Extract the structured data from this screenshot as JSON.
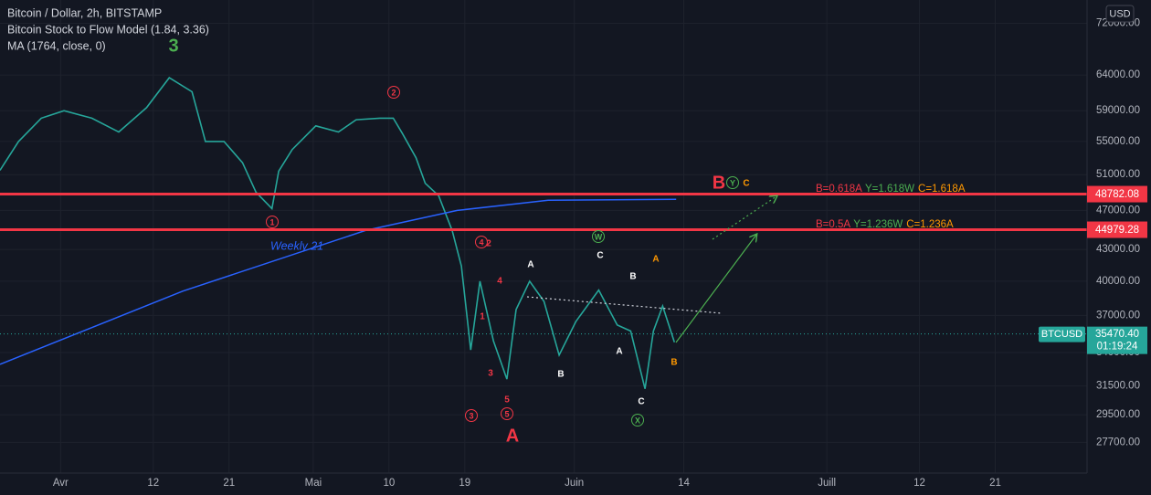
{
  "header": {
    "lines": [
      "Bitcoin / Dollar, 2h, BITSTAMP",
      "Bitcoin Stock to Flow Model (1.84, 3.36)",
      "MA (1764, close, 0)"
    ],
    "currency": "USD"
  },
  "chart_data": {
    "type": "line",
    "scale": "log",
    "grid": true,
    "xlim": [
      -7.2,
      121.9
    ],
    "ylim": [
      25830,
      75930
    ],
    "xticks": [
      {
        "value": 0,
        "label": "Avr"
      },
      {
        "value": 11,
        "label": "12"
      },
      {
        "value": 20,
        "label": "21"
      },
      {
        "value": 30,
        "label": "Mai"
      },
      {
        "value": 39,
        "label": "10"
      },
      {
        "value": 48,
        "label": "19"
      },
      {
        "value": 61,
        "label": "Juin"
      },
      {
        "value": 74,
        "label": "14"
      },
      {
        "value": 91,
        "label": "Juill"
      },
      {
        "value": 102,
        "label": "12"
      },
      {
        "value": 111,
        "label": "21"
      }
    ],
    "yticks": [
      {
        "value": 72000,
        "label": "72000.00"
      },
      {
        "value": 64000,
        "label": "64000.00"
      },
      {
        "value": 59000,
        "label": "59000.00"
      },
      {
        "value": 55000,
        "label": "55000.00"
      },
      {
        "value": 51000,
        "label": "51000.00"
      },
      {
        "value": 47000,
        "label": "47000.00"
      },
      {
        "value": 43000,
        "label": "43000.00"
      },
      {
        "value": 40000,
        "label": "40000.00"
      },
      {
        "value": 37000,
        "label": "37000.00"
      },
      {
        "value": 34000,
        "label": "34000.00"
      },
      {
        "value": 31500,
        "label": "31500.00"
      },
      {
        "value": 29500,
        "label": "29500.00"
      },
      {
        "value": 27700,
        "label": "27700.00"
      }
    ],
    "series": [
      {
        "name": "BTCUSD",
        "color": "#26a69a",
        "x": [
          -7.2,
          -5,
          -2.3,
          0.4,
          3.7,
          6.9,
          10.2,
          12.9,
          15.6,
          17.2,
          19.4,
          21.6,
          23.2,
          25.1,
          25.9,
          27.5,
          30.3,
          33,
          35.1,
          37.9,
          39.5,
          40.6,
          42.2,
          43.3,
          44.9,
          46.5,
          47.6,
          48.7,
          49.8,
          51.4,
          53,
          54.1,
          55.7,
          57.4,
          59.2,
          61.2,
          63.9,
          66.1,
          67.7,
          69.4,
          70.4,
          71.5,
          72.9
        ],
        "values": [
          51500,
          55000,
          58000,
          59000,
          58000,
          56200,
          59400,
          63600,
          61600,
          55000,
          55000,
          52400,
          49000,
          47200,
          51400,
          54000,
          57000,
          56200,
          57800,
          58000,
          58000,
          56000,
          53000,
          50000,
          48600,
          44900,
          41400,
          34200,
          40000,
          34900,
          32000,
          37500,
          40000,
          38200,
          33800,
          36500,
          39200,
          36200,
          35700,
          31300,
          35700,
          37800,
          34800
        ]
      },
      {
        "name": "Weekly 21",
        "color": "#2962ff",
        "x": [
          -7.2,
          14.5,
          36.2,
          47.1,
          57.9,
          73.1
        ],
        "values": [
          33100,
          39100,
          44900,
          47000,
          48100,
          48200
        ]
      }
    ],
    "levels": [
      {
        "value": 48782.08,
        "label": "48782.08",
        "color": "#f23645"
      },
      {
        "value": 44979.28,
        "label": "44979.28",
        "color": "#f23645"
      }
    ],
    "last_price": {
      "value": 35470.4,
      "label": "35470.40",
      "countdown": "01:19:24",
      "color": "#26a69a"
    },
    "fib_notes": [
      {
        "parts": [
          {
            "text": "B=0.618A",
            "color": "#f23645"
          },
          {
            "text": "Y=1.618W",
            "color": "#4caf50"
          },
          {
            "text": "C=1.618A",
            "color": "#ff9800"
          }
        ]
      },
      {
        "parts": [
          {
            "text": "B=0.5A",
            "color": "#f23645"
          },
          {
            "text": "Y=1.236W",
            "color": "#4caf50"
          },
          {
            "text": "C=1.236A",
            "color": "#ff9800"
          }
        ]
      }
    ],
    "annotations": [
      {
        "text": "3",
        "color": "#4caf50"
      },
      {
        "text": "2",
        "color": "#f23645",
        "circled": true
      },
      {
        "text": "1",
        "color": "#f23645",
        "circled": true
      },
      {
        "text": "4",
        "color": "#f23645",
        "circled": true
      },
      {
        "text": "2",
        "color": "#f23645"
      },
      {
        "text": "4",
        "color": "#f23645"
      },
      {
        "text": "1",
        "color": "#f23645"
      },
      {
        "text": "3",
        "color": "#f23645"
      },
      {
        "text": "5",
        "color": "#f23645"
      },
      {
        "text": "3",
        "color": "#f23645",
        "circled": true
      },
      {
        "text": "5",
        "color": "#f23645",
        "circled": true
      },
      {
        "text": "A",
        "color": "#f23645"
      },
      {
        "text": "A",
        "color": "#ffffff"
      },
      {
        "text": "C",
        "color": "#ffffff"
      },
      {
        "text": "B",
        "color": "#ffffff"
      },
      {
        "text": "A",
        "color": "#ffffff"
      },
      {
        "text": "B",
        "color": "#ffffff"
      },
      {
        "text": "C",
        "color": "#ffffff"
      },
      {
        "text": "W",
        "color": "#4caf50",
        "circled": true
      },
      {
        "text": "X",
        "color": "#4caf50",
        "circled": true
      },
      {
        "text": "Y",
        "color": "#4caf50",
        "circled": true
      },
      {
        "text": "A",
        "color": "#ff9800"
      },
      {
        "text": "B",
        "color": "#ff9800"
      },
      {
        "text": "C",
        "color": "#ff9800"
      },
      {
        "text": "B",
        "color": "#f23645"
      }
    ]
  }
}
